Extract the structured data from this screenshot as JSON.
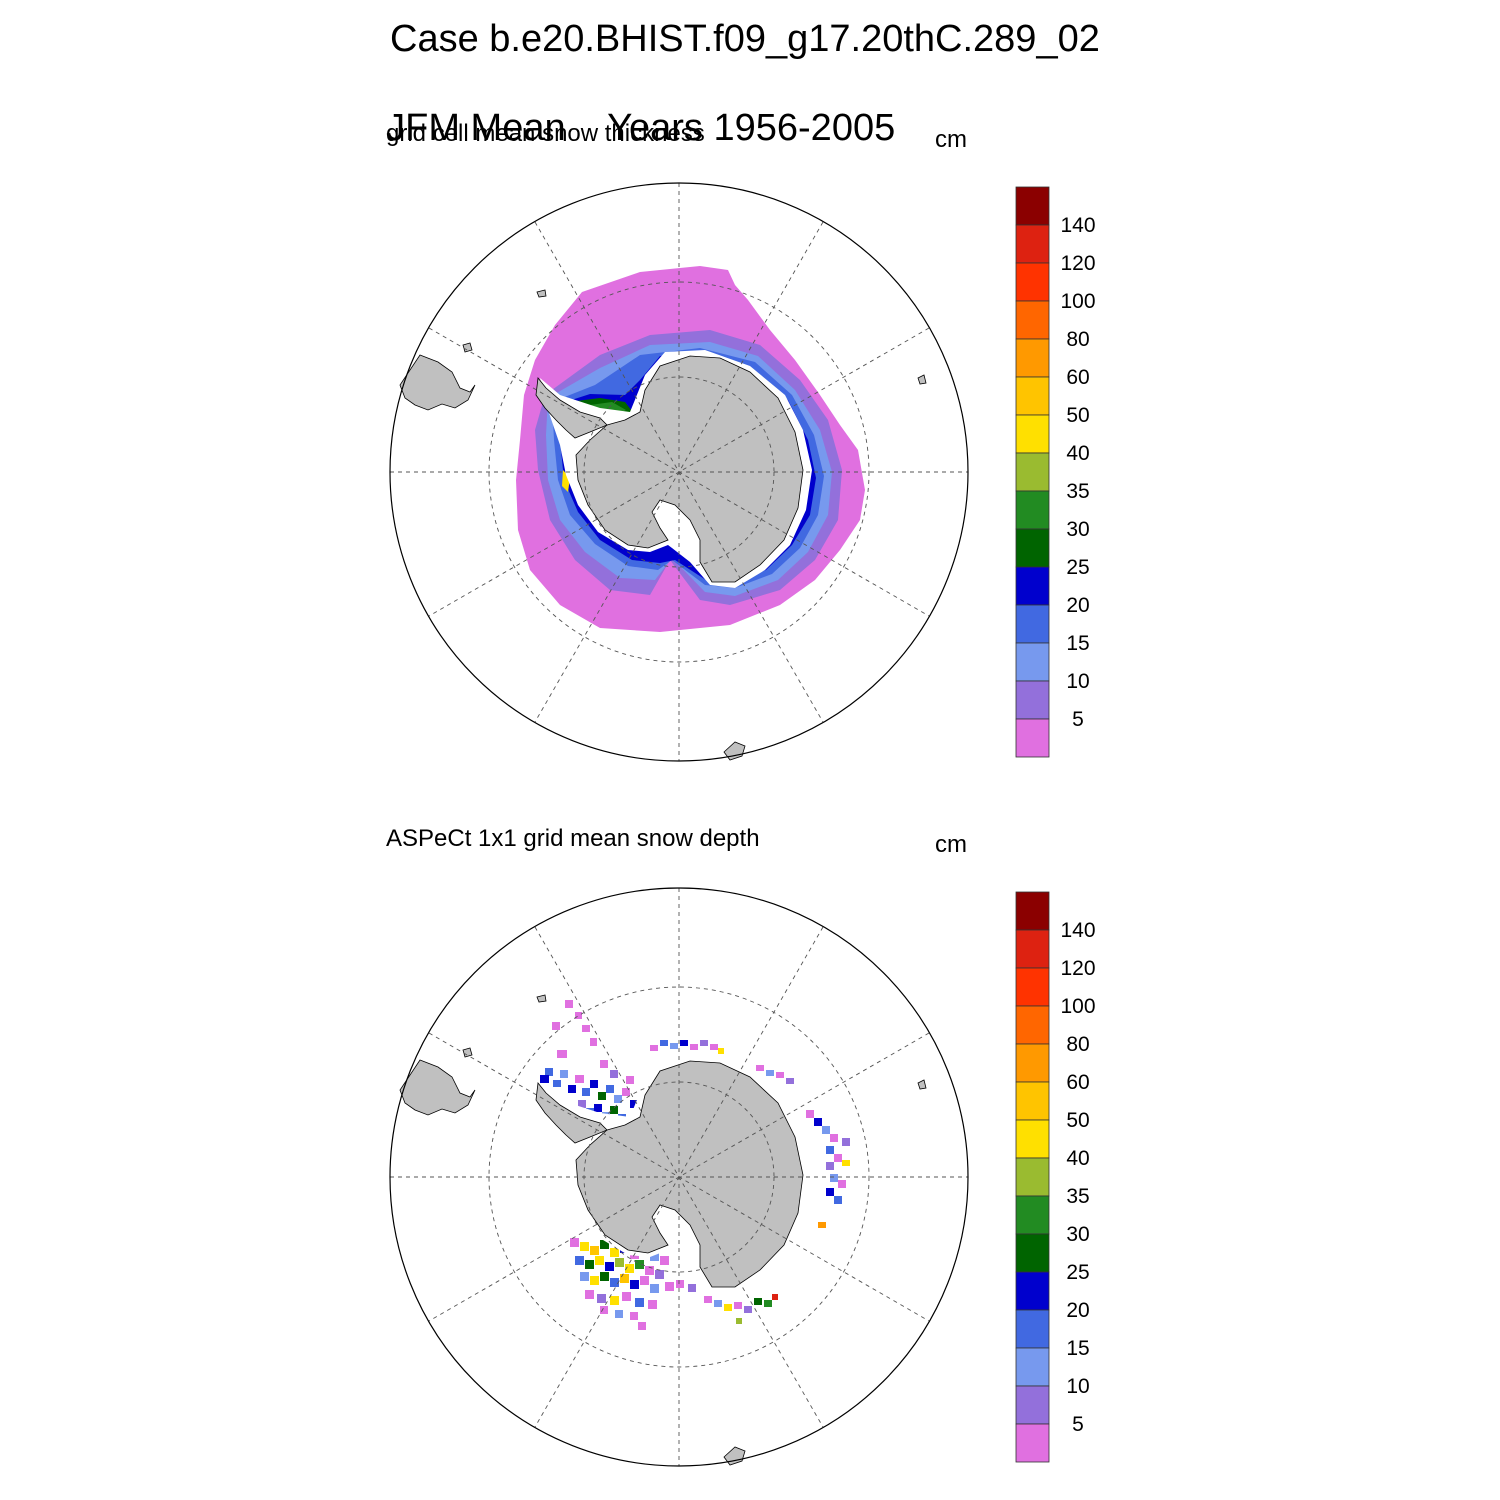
{
  "header": {
    "title_line1": "Case b.e20.BHIST.f09_g17.20thC.289_02",
    "season": "JFM Mean",
    "years": "Years 1956-2005"
  },
  "panels": [
    {
      "label": "grid cell mean snow thickness",
      "units": "cm"
    },
    {
      "label": "ASPeCt 1x1 grid mean snow depth",
      "units": "cm"
    }
  ],
  "colorbar": {
    "levels": [
      "5",
      "10",
      "15",
      "20",
      "25",
      "30",
      "35",
      "40",
      "50",
      "60",
      "80",
      "100",
      "120",
      "140"
    ],
    "colors": [
      "#e070e0",
      "#9370db",
      "#7799ee",
      "#4169e1",
      "#0000cd",
      "#006400",
      "#228b22",
      "#9abb30",
      "#ffe000",
      "#ffc400",
      "#ff9900",
      "#ff6600",
      "#ff3300",
      "#dd2211",
      "#8b0000"
    ]
  },
  "map_colors": {
    "land": "#c0c0c0",
    "ice_shelf": "#ffffff"
  }
}
